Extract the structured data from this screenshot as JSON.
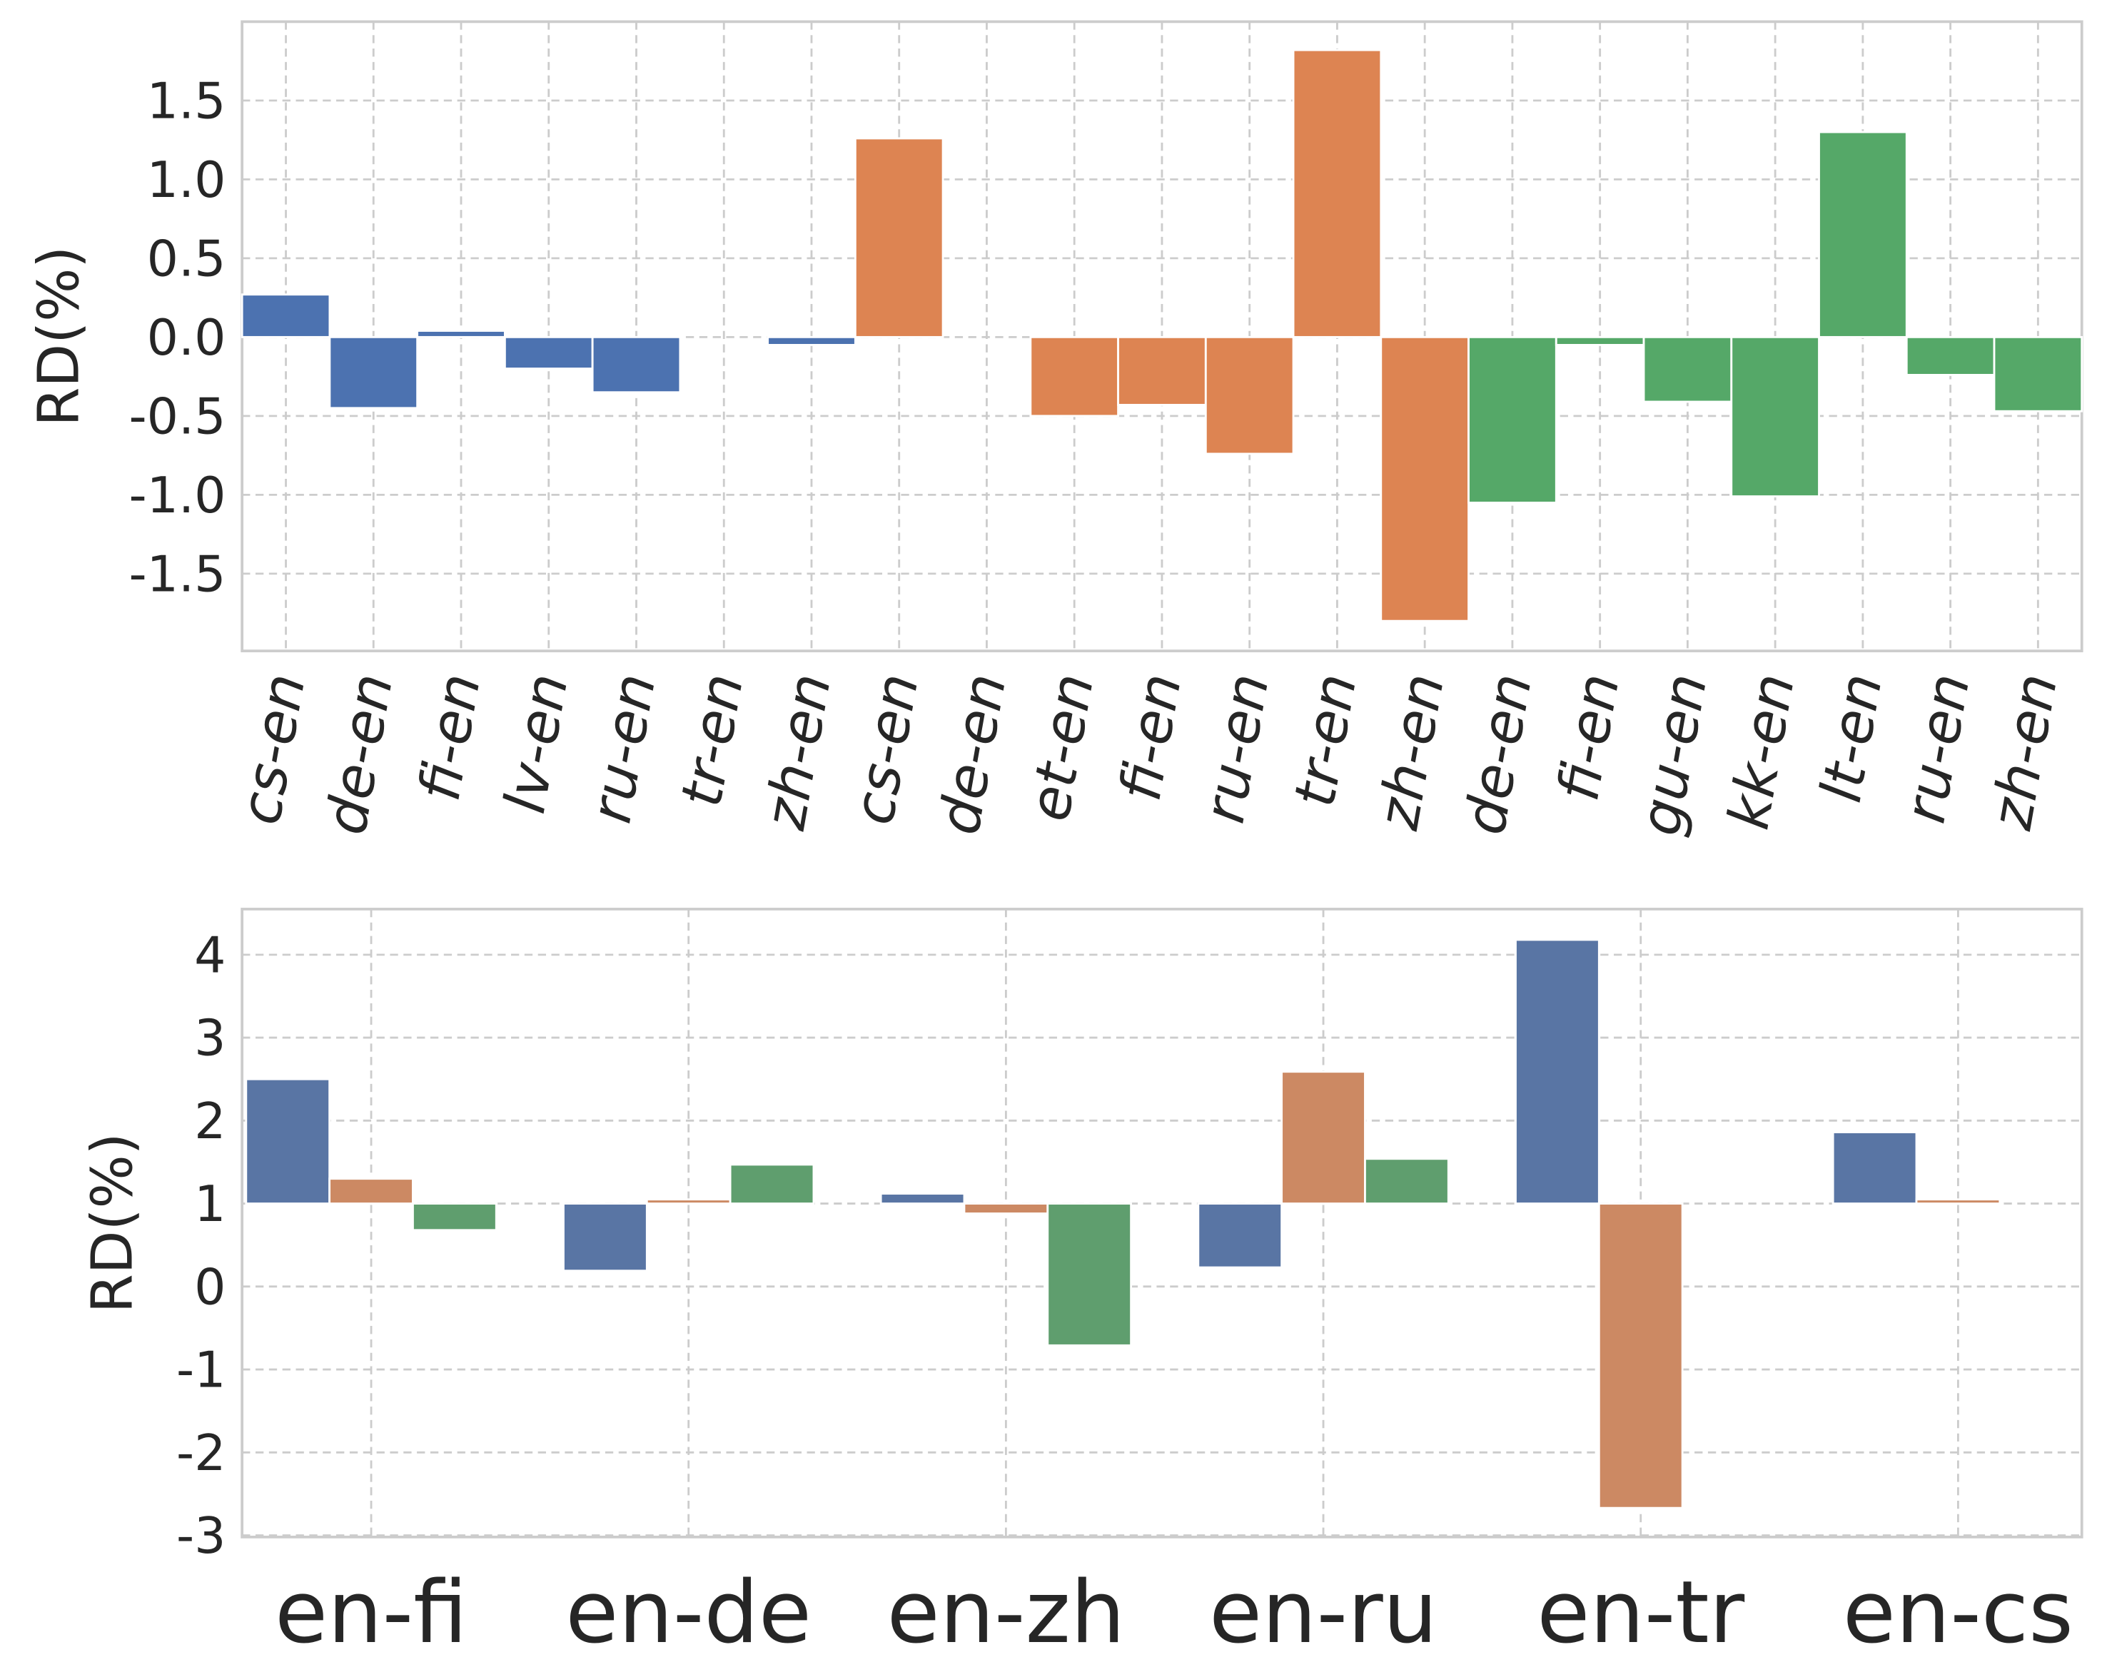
{
  "chart_data": [
    {
      "type": "bar",
      "ylabel": "RD(%)",
      "categories": [
        "cs-en",
        "de-en",
        "fi-en",
        "lv-en",
        "ru-en",
        "tr-en",
        "zh-en",
        "cs-en",
        "de-en",
        "et-en",
        "fi-en",
        "ru-en",
        "tr-en",
        "zh-en",
        "de-en",
        "fi-en",
        "gu-en",
        "kk-en",
        "lt-en",
        "ru-en",
        "zh-en"
      ],
      "values": [
        0.27,
        -0.45,
        0.04,
        -0.2,
        -0.35,
        0,
        -0.05,
        1.26,
        0,
        -0.5,
        -0.43,
        -0.74,
        1.82,
        -1.8,
        -1.05,
        -0.05,
        -0.41,
        -1.01,
        1.3,
        -0.24,
        -0.47
      ],
      "colors": [
        "#4c72b0",
        "#4c72b0",
        "#4c72b0",
        "#4c72b0",
        "#4c72b0",
        "#4c72b0",
        "#4c72b0",
        "#dd8452",
        "#dd8452",
        "#dd8452",
        "#dd8452",
        "#dd8452",
        "#dd8452",
        "#dd8452",
        "#55a868",
        "#55a868",
        "#55a868",
        "#55a868",
        "#55a868",
        "#55a868",
        "#55a868"
      ],
      "ylim": [
        -1.99,
        2.0
      ],
      "yticks": [
        -1.5,
        {
          "value": -1.0,
          "label": "-1.0"
        },
        -0.5,
        {
          "value": 0,
          "label": "0.0"
        },
        0.5,
        {
          "value": 1.0,
          "label": "1.0"
        },
        1.5
      ],
      "grid": true
    },
    {
      "type": "grouped_bar",
      "ylabel": "RD(%)",
      "categories": [
        "en-fi",
        "en-de",
        "en-zh",
        "en-ru",
        "en-tr",
        "en-cs"
      ],
      "baseline": 1,
      "series": [
        {
          "color": "#5975a4",
          "values": [
            2.5,
            0.19,
            1.12,
            0.23,
            4.18,
            1.86
          ]
        },
        {
          "color": "#cc8963",
          "values": [
            1.3,
            1.05,
            0.88,
            2.59,
            -2.67,
            1.05
          ]
        },
        {
          "color": "#5f9e6e",
          "values": [
            0.68,
            1.47,
            -0.71,
            1.54,
            1,
            1
          ]
        }
      ],
      "ylim": [
        -3.02,
        4.55
      ],
      "yticks": [
        -3,
        -2,
        -1,
        0,
        1,
        2,
        3,
        4
      ],
      "grid": true
    }
  ]
}
